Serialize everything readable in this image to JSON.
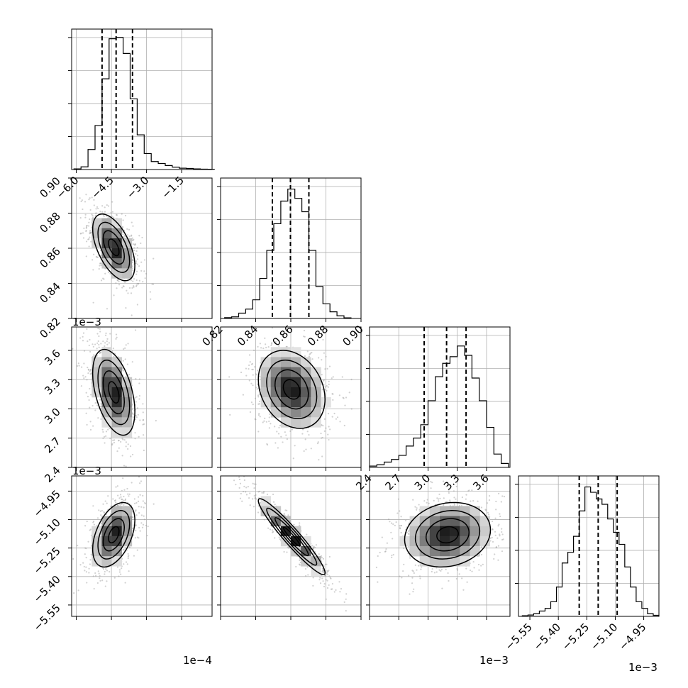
{
  "chart_data": {
    "type": "corner",
    "parameters": [
      {
        "ticks": [
          -6.0,
          -4.5,
          -3.0,
          -1.5
        ],
        "tick_labels": [
          "−6.0",
          "−4.5",
          "−3.0",
          "−1.5"
        ],
        "range": [
          -6.2,
          -0.2
        ],
        "offset_label": "1e−4",
        "quantiles": [
          -4.9,
          -4.3,
          -3.6
        ],
        "bins": [
          -6.1,
          -5.8,
          -5.5,
          -5.2,
          -4.9,
          -4.6,
          -4.3,
          -4.0,
          -3.7,
          -3.4,
          -3.1,
          -2.8,
          -2.5,
          -2.2,
          -1.9,
          -1.6,
          -1.3,
          -1.0,
          -0.7,
          -0.4
        ],
        "hist": [
          0.005,
          0.02,
          0.15,
          0.33,
          0.68,
          0.98,
          0.99,
          0.87,
          0.53,
          0.26,
          0.12,
          0.06,
          0.045,
          0.03,
          0.018,
          0.01,
          0.008,
          0.005,
          0.003,
          0.002
        ]
      },
      {
        "ticks": [
          0.82,
          0.84,
          0.86,
          0.88,
          0.9
        ],
        "tick_labels": [
          "0.82",
          "0.84",
          "0.86",
          "0.88",
          "0.90"
        ],
        "range": [
          0.82,
          0.9
        ],
        "offset_label": "",
        "quantiles": [
          0.8495,
          0.8598,
          0.8703
        ],
        "bins": [
          0.8223,
          0.8263,
          0.8303,
          0.8343,
          0.8383,
          0.8423,
          0.8463,
          0.8503,
          0.8543,
          0.8583,
          0.8623,
          0.8663,
          0.8703,
          0.8743,
          0.8783,
          0.8823,
          0.8863,
          0.8903
        ],
        "hist": [
          0.006,
          0.012,
          0.04,
          0.07,
          0.14,
          0.3,
          0.51,
          0.71,
          0.88,
          0.97,
          0.9,
          0.8,
          0.51,
          0.24,
          0.11,
          0.05,
          0.02,
          0.005
        ]
      },
      {
        "ticks": [
          2.4,
          2.7,
          3.0,
          3.3,
          3.6
        ],
        "tick_labels": [
          "2.4",
          "2.7",
          "3.0",
          "3.3",
          "3.6"
        ],
        "range": [
          2.4,
          3.84
        ],
        "offset_label": "1e−3",
        "quantiles": [
          2.96,
          3.19,
          3.39
        ],
        "bins": [
          2.4,
          2.475,
          2.55,
          2.625,
          2.7,
          2.775,
          2.85,
          2.925,
          3.0,
          3.075,
          3.15,
          3.225,
          3.3,
          3.375,
          3.45,
          3.525,
          3.6,
          3.675,
          3.75
        ],
        "hist": [
          0.01,
          0.02,
          0.04,
          0.06,
          0.09,
          0.16,
          0.22,
          0.32,
          0.5,
          0.68,
          0.78,
          0.83,
          0.91,
          0.84,
          0.67,
          0.5,
          0.3,
          0.1,
          0.03
        ]
      },
      {
        "ticks": [
          -5.55,
          -5.4,
          -5.25,
          -5.1,
          -4.95
        ],
        "tick_labels": [
          "−5.55",
          "−5.40",
          "−5.25",
          "−5.10",
          "−4.95"
        ],
        "range": [
          -5.61,
          -4.87
        ],
        "offset_label": "1e−3",
        "quantiles": [
          -5.29,
          -5.19,
          -5.09
        ],
        "bins": [
          -5.59,
          -5.56,
          -5.53,
          -5.5,
          -5.47,
          -5.44,
          -5.41,
          -5.38,
          -5.35,
          -5.32,
          -5.29,
          -5.26,
          -5.23,
          -5.2,
          -5.17,
          -5.14,
          -5.11,
          -5.08,
          -5.05,
          -5.02,
          -4.99,
          -4.96,
          -4.93,
          -4.9
        ],
        "hist": [
          0.005,
          0.01,
          0.02,
          0.04,
          0.06,
          0.11,
          0.22,
          0.4,
          0.48,
          0.6,
          0.79,
          0.97,
          0.93,
          0.88,
          0.84,
          0.73,
          0.63,
          0.54,
          0.37,
          0.22,
          0.11,
          0.06,
          0.02,
          0.008
        ]
      }
    ],
    "pairs": [
      {
        "row": 1,
        "col": 0,
        "mean": [
          -4.4,
          0.8605
        ],
        "sd": [
          0.45,
          0.0095
        ],
        "corr": -0.55
      },
      {
        "row": 2,
        "col": 0,
        "mean": [
          -4.4,
          3.17
        ],
        "sd": [
          0.45,
          0.22
        ],
        "corr": -0.45
      },
      {
        "row": 2,
        "col": 1,
        "mean": [
          0.8605,
          3.2
        ],
        "sd": [
          0.0095,
          0.2
        ],
        "corr": -0.25
      },
      {
        "row": 3,
        "col": 0,
        "mean": [
          -4.4,
          -5.18
        ],
        "sd": [
          0.45,
          0.085
        ],
        "corr": 0.45
      },
      {
        "row": 3,
        "col": 1,
        "mean": [
          0.8605,
          -5.19
        ],
        "sd": [
          0.0095,
          0.1
        ],
        "corr": -0.95
      },
      {
        "row": 3,
        "col": 2,
        "mean": [
          3.2,
          -5.18
        ],
        "sd": [
          0.22,
          0.085
        ],
        "corr": 0.15
      }
    ]
  }
}
